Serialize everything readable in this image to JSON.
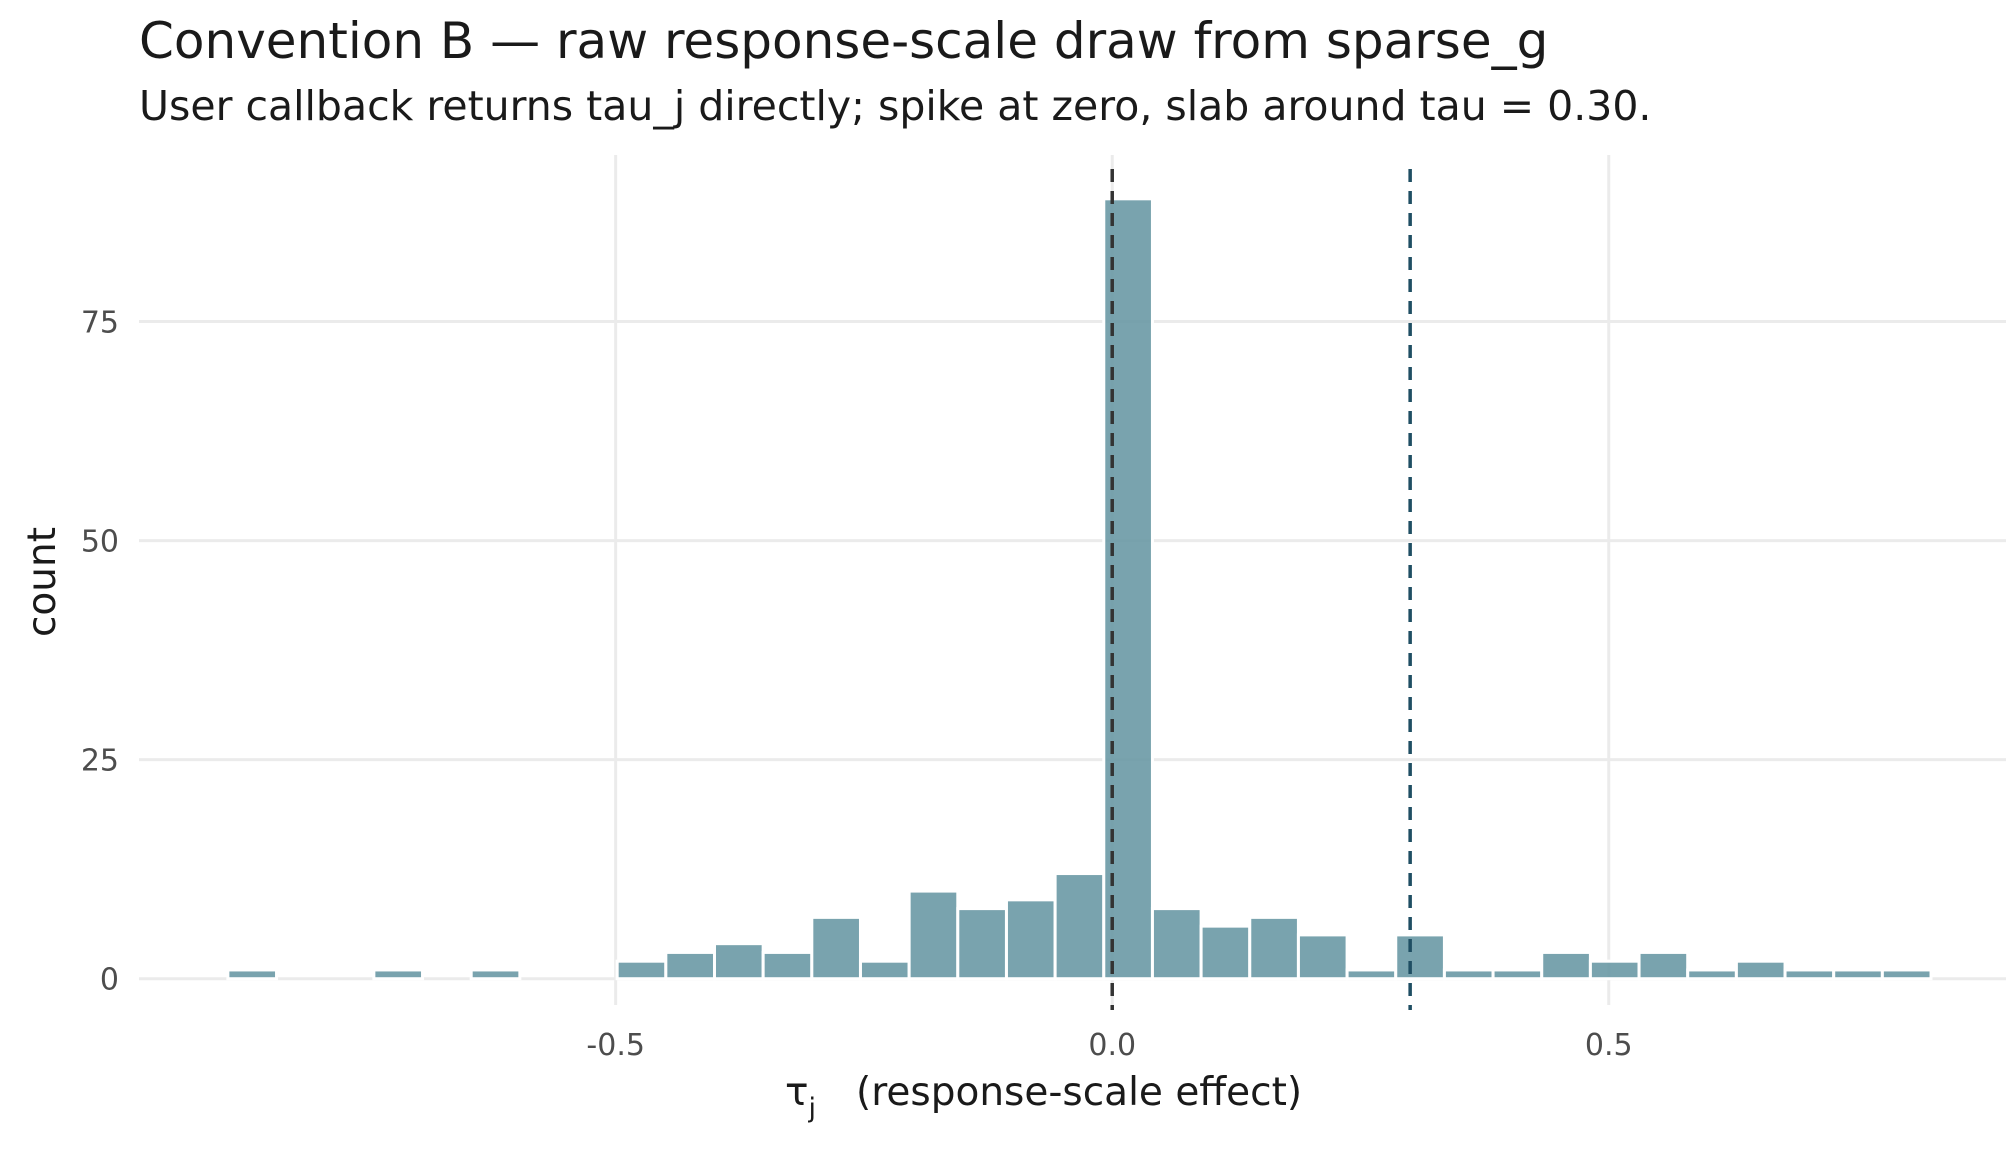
{
  "title": "Convention B — raw response-scale draw from sparse_g",
  "subtitle": "User callback returns tau_j directly; spike at zero, slab around tau = 0.30.",
  "chart_data": {
    "type": "bar",
    "title": "Convention B — raw response-scale draw from sparse_g",
    "subtitle": "User callback returns tau_j directly; spike at zero, slab around tau = 0.30.",
    "xlabel_symbol": "τ",
    "xlabel_subscript": "j",
    "xlabel_text": "(response-scale effect)",
    "ylabel": "count",
    "xlim": [
      -0.98,
      0.9
    ],
    "ylim": [
      -3,
      94
    ],
    "x_ticks": [
      -0.5,
      0.0,
      0.5
    ],
    "x_tick_labels": [
      "-0.5",
      "0.0",
      "0.5"
    ],
    "y_ticks": [
      0,
      25,
      50,
      75
    ],
    "y_tick_labels": [
      "0",
      "25",
      "50",
      "75"
    ],
    "bin_width": 0.049,
    "bins": [
      {
        "x": -0.866,
        "count": 1
      },
      {
        "x": -0.817,
        "count": 0
      },
      {
        "x": -0.768,
        "count": 0
      },
      {
        "x": -0.719,
        "count": 1
      },
      {
        "x": -0.67,
        "count": 0
      },
      {
        "x": -0.621,
        "count": 1
      },
      {
        "x": -0.572,
        "count": 0
      },
      {
        "x": -0.523,
        "count": 0
      },
      {
        "x": -0.474,
        "count": 2
      },
      {
        "x": -0.425,
        "count": 3
      },
      {
        "x": -0.376,
        "count": 4
      },
      {
        "x": -0.327,
        "count": 3
      },
      {
        "x": -0.278,
        "count": 7
      },
      {
        "x": -0.229,
        "count": 2
      },
      {
        "x": -0.18,
        "count": 10
      },
      {
        "x": -0.131,
        "count": 8
      },
      {
        "x": -0.082,
        "count": 9
      },
      {
        "x": -0.033,
        "count": 12
      },
      {
        "x": 0.016,
        "count": 89
      },
      {
        "x": 0.065,
        "count": 8
      },
      {
        "x": 0.114,
        "count": 6
      },
      {
        "x": 0.163,
        "count": 7
      },
      {
        "x": 0.212,
        "count": 5
      },
      {
        "x": 0.261,
        "count": 1
      },
      {
        "x": 0.31,
        "count": 5
      },
      {
        "x": 0.359,
        "count": 1
      },
      {
        "x": 0.408,
        "count": 1
      },
      {
        "x": 0.457,
        "count": 3
      },
      {
        "x": 0.506,
        "count": 2
      },
      {
        "x": 0.555,
        "count": 3
      },
      {
        "x": 0.604,
        "count": 1
      },
      {
        "x": 0.653,
        "count": 2
      },
      {
        "x": 0.702,
        "count": 1
      },
      {
        "x": 0.751,
        "count": 1
      },
      {
        "x": 0.8,
        "count": 1
      }
    ],
    "reference_lines": [
      {
        "x": 0.0,
        "color": "#333333",
        "style": "dashed"
      },
      {
        "x": 0.3,
        "color": "#1f4e63",
        "style": "dashed"
      }
    ],
    "bar_color": "#6a99a5",
    "grid": true,
    "legend": "none"
  }
}
